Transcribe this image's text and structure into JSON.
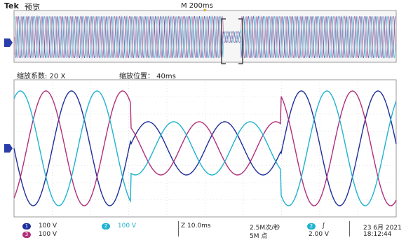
{
  "header": {
    "brand": "Tek",
    "mode": "预览",
    "trigger_pos": "M 200ms"
  },
  "zoom": {
    "factor_label": "缩放系数: 20 X",
    "position_label": "缩放位置： 40ms"
  },
  "channels": [
    {
      "num": "1",
      "scale": "100 V",
      "color": "#1f2f9a"
    },
    {
      "num": "3",
      "scale": "100 V",
      "color": "#b0307a"
    },
    {
      "num": "2",
      "scale": "100 V",
      "color": "#1fb3cf"
    }
  ],
  "timebase": "Z 10.0ms",
  "sample_rate": "2.5M次/秒",
  "record_length": "5M 点",
  "trigger": {
    "badge": "2",
    "slope": "∫",
    "level": "2.00 V"
  },
  "date": "23 6月 2021",
  "time": "18:12:44"
}
